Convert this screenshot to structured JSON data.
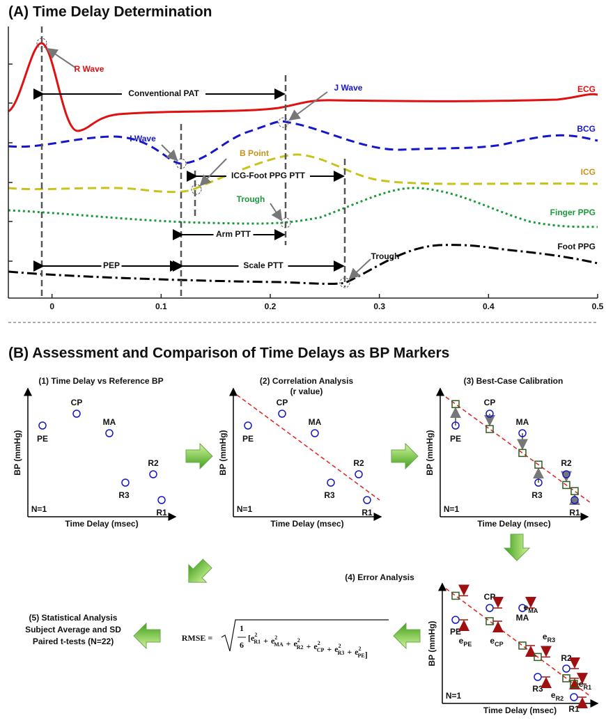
{
  "panel_a": {
    "title": "(A) Time Delay Determination",
    "xlim": [
      -0.04,
      0.5
    ],
    "xticks": [
      0,
      0.1,
      0.2,
      0.3,
      0.4,
      0.5
    ],
    "wave_labels": [
      "ECG",
      "BCG",
      "ICG",
      "Finger PPG",
      "Foot PPG"
    ],
    "point_labels": [
      "R Wave",
      "J Wave",
      "I Wave",
      "B Point",
      "Trough",
      "Trough"
    ],
    "intervals": [
      "Conventional PAT",
      "ICG-Foot PPG PTT",
      "Arm PTT",
      "PEP",
      "Scale PTT"
    ]
  },
  "panel_b": {
    "title": "(B) Assessment and Comparison of Time Delays as BP Markers",
    "steps": [
      "(1) Time Delay vs Reference BP",
      "(2) Correlation Analysis",
      "(3) Best-Case Calibration",
      "(4) Error Analysis"
    ],
    "step2_subtitle": "(r value)",
    "y_label": "BP (mmHg)",
    "x_label": "Time Delay (msec)",
    "n_label": "N=1",
    "points": [
      "PE",
      "CP",
      "MA",
      "R3",
      "R2",
      "R1"
    ],
    "error_symbol": "e",
    "exponent": "2",
    "rmse": {
      "label": "RMSE =",
      "numerator": "1",
      "denominator": "6",
      "open": "[",
      "close": "]",
      "operator": "+"
    },
    "step5": [
      "(5) Statistical Analysis",
      "Subject Average and SD",
      "Paired t-tests (N=22)"
    ]
  }
}
